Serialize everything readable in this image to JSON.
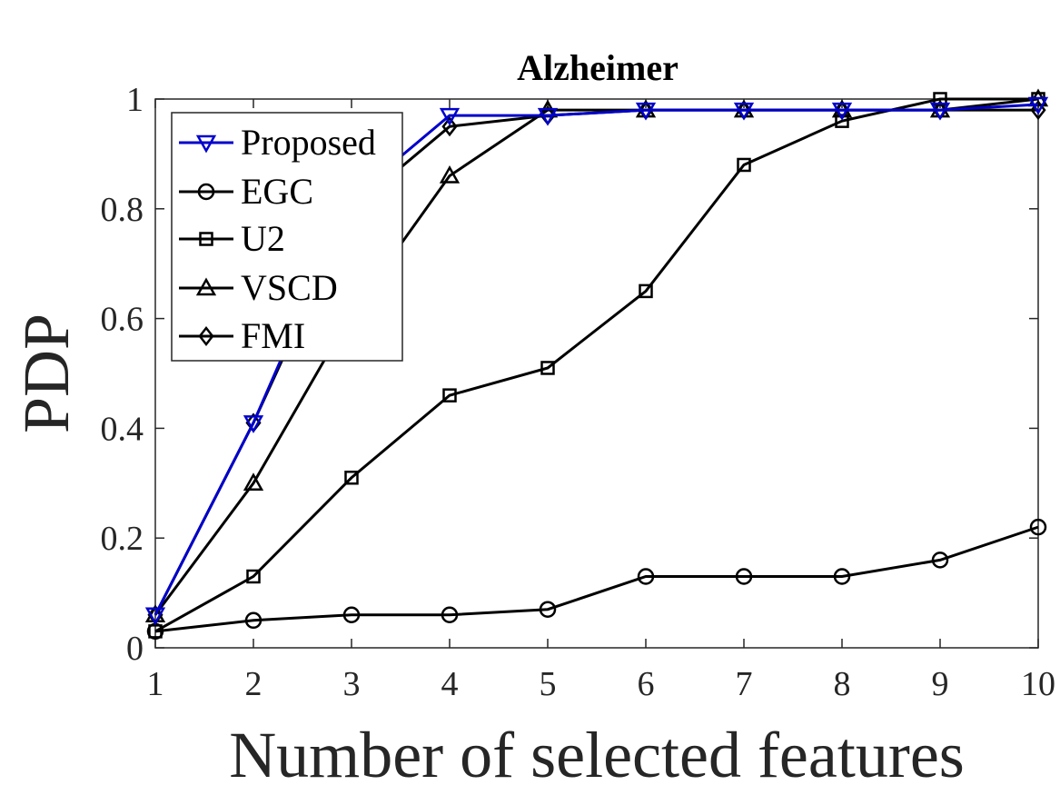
{
  "chart_data": {
    "type": "line",
    "title": "Alzheimer",
    "xlabel": "Number of selected features",
    "ylabel": "PDP",
    "x": [
      1,
      2,
      3,
      4,
      5,
      6,
      7,
      8,
      9,
      10
    ],
    "xticks": [
      "1",
      "2",
      "3",
      "4",
      "5",
      "6",
      "7",
      "8",
      "9",
      "10"
    ],
    "yticks": [
      "0",
      "0.2",
      "0.4",
      "0.6",
      "0.8",
      "1"
    ],
    "xlim": [
      1,
      10
    ],
    "ylim": [
      0,
      1
    ],
    "grid": false,
    "legend_position": "top-left",
    "series": [
      {
        "name": "Proposed",
        "marker": "triangle-down",
        "color": "#0000cc",
        "values": [
          0.06,
          0.41,
          0.82,
          0.97,
          0.97,
          0.98,
          0.98,
          0.98,
          0.98,
          0.99
        ]
      },
      {
        "name": "EGC",
        "marker": "circle",
        "color": "#000000",
        "values": [
          0.03,
          0.05,
          0.06,
          0.06,
          0.07,
          0.13,
          0.13,
          0.13,
          0.16,
          0.22
        ]
      },
      {
        "name": "U2",
        "marker": "square",
        "color": "#000000",
        "values": [
          0.03,
          0.13,
          0.31,
          0.46,
          0.51,
          0.65,
          0.88,
          0.96,
          1.0,
          1.0
        ]
      },
      {
        "name": "VSCD",
        "marker": "triangle-up",
        "color": "#000000",
        "values": [
          0.06,
          0.3,
          0.61,
          0.86,
          0.98,
          0.98,
          0.98,
          0.98,
          0.98,
          1.0
        ]
      },
      {
        "name": "FMI",
        "marker": "diamond",
        "color": "#000000",
        "values": [
          0.06,
          0.41,
          0.8,
          0.95,
          0.97,
          0.98,
          0.98,
          0.98,
          0.98,
          0.98
        ]
      }
    ]
  }
}
